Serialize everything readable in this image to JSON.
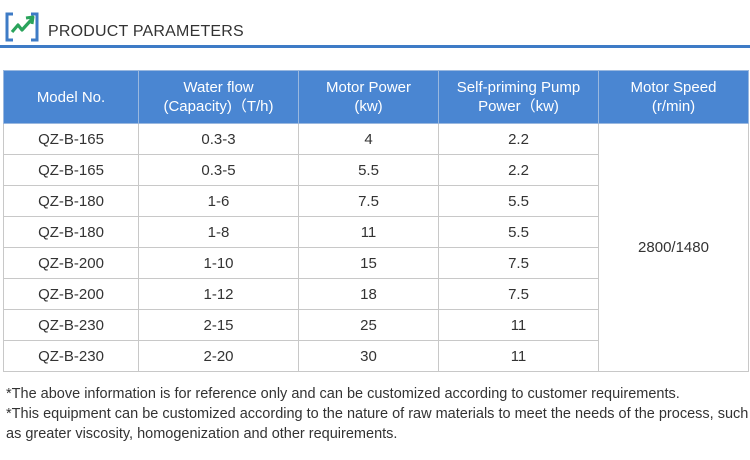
{
  "header": {
    "title": "PRODUCT PARAMETERS",
    "logo_icon": "bracket-arrow-logo-icon",
    "accent_color": "#3e7bc6",
    "logo_green": "#2aa35b"
  },
  "table": {
    "header_color": "#4a86d2",
    "columns": [
      {
        "lines": [
          "Model No."
        ]
      },
      {
        "lines": [
          "Water flow",
          "(Capacity)（T/h)"
        ]
      },
      {
        "lines": [
          "Motor Power",
          "(kw)"
        ]
      },
      {
        "lines": [
          "Self-priming Pump",
          "Power（kw)"
        ]
      },
      {
        "lines": [
          "Motor Speed",
          "(r/min)"
        ]
      }
    ],
    "rows": [
      {
        "model": "QZ-B-165",
        "flow": "0.3-3",
        "motor_power": "4",
        "pump_power": "2.2"
      },
      {
        "model": "QZ-B-165",
        "flow": "0.3-5",
        "motor_power": "5.5",
        "pump_power": "2.2"
      },
      {
        "model": "QZ-B-180",
        "flow": "1-6",
        "motor_power": "7.5",
        "pump_power": "5.5"
      },
      {
        "model": "QZ-B-180",
        "flow": "1-8",
        "motor_power": "11",
        "pump_power": "5.5"
      },
      {
        "model": "QZ-B-200",
        "flow": "1-10",
        "motor_power": "15",
        "pump_power": "7.5"
      },
      {
        "model": "QZ-B-200",
        "flow": "1-12",
        "motor_power": "18",
        "pump_power": "7.5"
      },
      {
        "model": "QZ-B-230",
        "flow": "2-15",
        "motor_power": "25",
        "pump_power": "11"
      },
      {
        "model": "QZ-B-230",
        "flow": "2-20",
        "motor_power": "30",
        "pump_power": "11"
      }
    ],
    "motor_speed": "2800/1480"
  },
  "notes": [
    "*The above information is for reference only and can be customized according to customer requirements.",
    "*This equipment can be customized according to the nature of raw materials to meet the needs of the process, such as greater viscosity, homogenization and other requirements."
  ]
}
